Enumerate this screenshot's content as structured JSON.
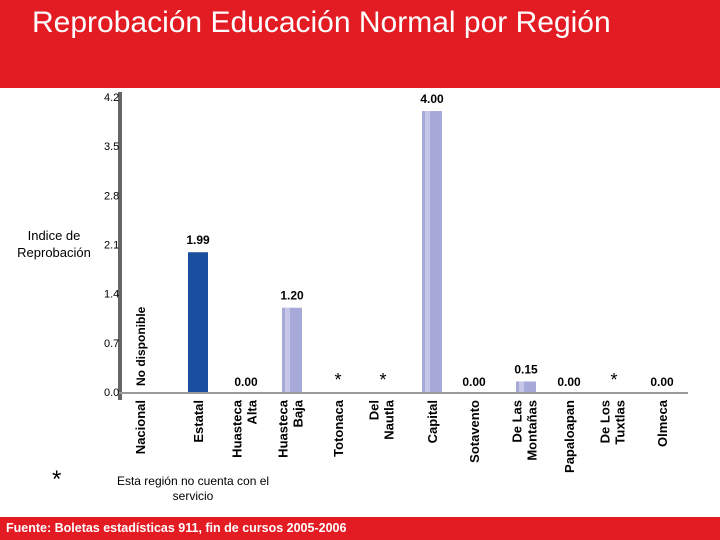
{
  "page": {
    "title": "Reprobación Educación Normal por Región",
    "footer": "Fuente: Boletas estadísticas 911, fin de cursos 2005-2006",
    "note_symbol": "*",
    "note_text": "Esta región no cuenta con el servicio",
    "ylabel": "Indice de Reprobación",
    "not_available_label": "No disponible",
    "colors": {
      "accent": "#e31b23",
      "estatal_bar": "#1a4fa0",
      "region_bar": "#a7a9d8"
    }
  },
  "chart_data": {
    "type": "bar",
    "title": "Reprobación Educación Normal por Región",
    "ylabel": "Indice de Reprobación",
    "xlabel": "",
    "ylim": [
      0,
      4.2
    ],
    "yticks": [
      "0.0",
      "0.7",
      "1.4",
      "2.1",
      "2.8",
      "3.5",
      "4.2"
    ],
    "categories": [
      "Nacional",
      "Estatal",
      "Huasteca Alta",
      "Huasteca Baja",
      "Totonaca",
      "Del Nautla",
      "Capital",
      "Sotavento",
      "De Las Montañas",
      "Papaloapan",
      "De Los Tuxtlas",
      "Olmeca"
    ],
    "values": [
      null,
      1.99,
      0.0,
      1.2,
      null,
      null,
      4.0,
      0.0,
      0.15,
      0.0,
      null,
      0.0
    ],
    "data_labels": [
      "No disponible",
      "1.99",
      "0.00",
      "1.20",
      "*",
      "*",
      "4.00",
      "0.00",
      "0.15",
      "0.00",
      "*",
      "0.00"
    ],
    "grid": false,
    "legend": "none"
  }
}
